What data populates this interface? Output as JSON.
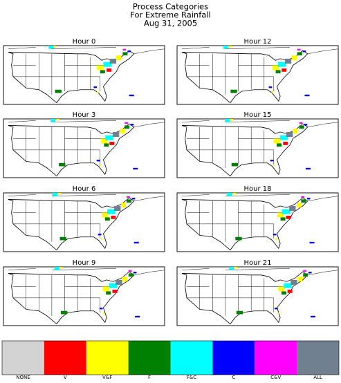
{
  "title": [
    "Process Categories",
    "For Extreme Rainfall",
    "Aug 31, 2005"
  ],
  "panels": [
    {
      "title": "Hour 0"
    },
    {
      "title": "Hour 12"
    },
    {
      "title": "Hour 3"
    },
    {
      "title": "Hour 15"
    },
    {
      "title": "Hour 6"
    },
    {
      "title": "Hour 18"
    },
    {
      "title": "Hour 9"
    },
    {
      "title": "Hour 21"
    }
  ],
  "legend": [
    {
      "label": "NONE",
      "color": "#d3d3d3"
    },
    {
      "label": "V",
      "color": "#ff0000"
    },
    {
      "label": "V&F",
      "color": "#ffff00"
    },
    {
      "label": "F",
      "color": "#008000"
    },
    {
      "label": "F&C",
      "color": "#00ffff"
    },
    {
      "label": "C",
      "color": "#0000ff"
    },
    {
      "label": "C&V",
      "color": "#ff00ff"
    },
    {
      "label": "ALL",
      "color": "#708090"
    }
  ]
}
